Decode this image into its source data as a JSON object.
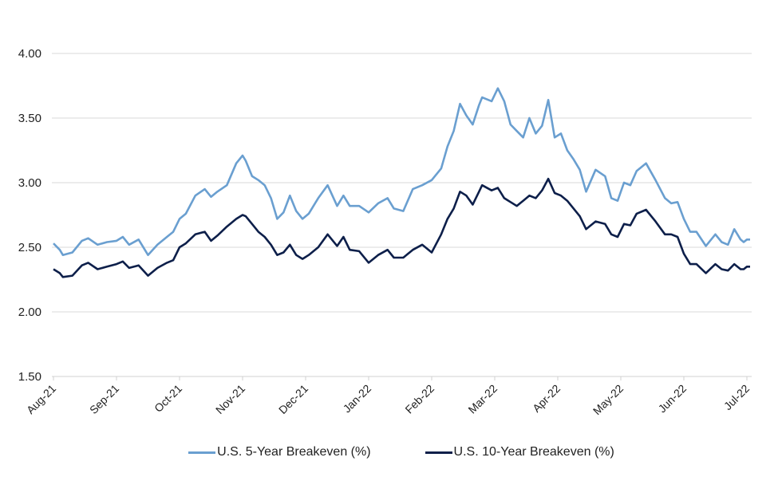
{
  "chart_data": {
    "type": "line",
    "title": "",
    "xlabel": "",
    "ylabel": "",
    "ylim": [
      1.5,
      4.0
    ],
    "yticks": [
      "1.50",
      "2.00",
      "2.50",
      "3.00",
      "3.50",
      "4.00"
    ],
    "ytick_values": [
      1.5,
      2.0,
      2.5,
      3.0,
      3.5,
      4.0
    ],
    "categories": [
      "Aug-21",
      "Sep-21",
      "Oct-21",
      "Nov-21",
      "Dec-21",
      "Jan-22",
      "Feb-22",
      "Mar-22",
      "Apr-22",
      "May-22",
      "Jun-22",
      "Jul-22"
    ],
    "grid": true,
    "legend_position": "bottom",
    "x_domain_months": [
      0,
      11.05
    ],
    "series": [
      {
        "name": "U.S. 5-Year Breakeven (%)",
        "color": "#6a9fd0",
        "x": [
          0,
          0.1,
          0.15,
          0.3,
          0.45,
          0.55,
          0.7,
          0.85,
          1.0,
          1.1,
          1.2,
          1.35,
          1.5,
          1.65,
          1.8,
          1.9,
          2.0,
          2.1,
          2.25,
          2.4,
          2.5,
          2.6,
          2.75,
          2.9,
          3.0,
          3.05,
          3.15,
          3.25,
          3.35,
          3.45,
          3.55,
          3.65,
          3.75,
          3.85,
          3.95,
          4.05,
          4.2,
          4.35,
          4.5,
          4.6,
          4.7,
          4.85,
          5.0,
          5.15,
          5.3,
          5.4,
          5.55,
          5.7,
          5.85,
          6.0,
          6.15,
          6.25,
          6.35,
          6.45,
          6.55,
          6.65,
          6.75,
          6.8,
          6.95,
          7.05,
          7.15,
          7.25,
          7.35,
          7.45,
          7.55,
          7.65,
          7.75,
          7.85,
          7.95,
          8.05,
          8.15,
          8.25,
          8.35,
          8.45,
          8.6,
          8.75,
          8.85,
          8.95,
          9.05,
          9.15,
          9.25,
          9.4,
          9.55,
          9.7,
          9.8,
          9.9,
          10.0,
          10.1,
          10.2,
          10.35,
          10.5,
          10.6,
          10.7,
          10.8,
          10.9,
          10.95,
          11.0,
          11.05
        ],
        "values": [
          2.53,
          2.48,
          2.44,
          2.46,
          2.55,
          2.57,
          2.52,
          2.54,
          2.55,
          2.58,
          2.52,
          2.56,
          2.44,
          2.52,
          2.58,
          2.62,
          2.72,
          2.76,
          2.9,
          2.95,
          2.89,
          2.93,
          2.98,
          3.15,
          3.21,
          3.17,
          3.05,
          3.02,
          2.98,
          2.88,
          2.72,
          2.77,
          2.9,
          2.78,
          2.72,
          2.76,
          2.88,
          2.98,
          2.82,
          2.9,
          2.82,
          2.82,
          2.77,
          2.84,
          2.88,
          2.8,
          2.78,
          2.95,
          2.98,
          3.02,
          3.11,
          3.28,
          3.4,
          3.61,
          3.52,
          3.45,
          3.6,
          3.66,
          3.63,
          3.73,
          3.63,
          3.45,
          3.4,
          3.35,
          3.5,
          3.38,
          3.44,
          3.64,
          3.35,
          3.38,
          3.25,
          3.18,
          3.1,
          2.93,
          3.1,
          3.05,
          2.88,
          2.86,
          3.0,
          2.98,
          3.09,
          3.15,
          3.02,
          2.88,
          2.84,
          2.85,
          2.72,
          2.62,
          2.62,
          2.51,
          2.6,
          2.54,
          2.52,
          2.64,
          2.56,
          2.54,
          2.56,
          2.56
        ]
      },
      {
        "name": "U.S. 10-Year Breakeven (%)",
        "color": "#0d1f4a",
        "x": [
          0,
          0.1,
          0.15,
          0.3,
          0.45,
          0.55,
          0.7,
          0.85,
          1.0,
          1.1,
          1.2,
          1.35,
          1.5,
          1.65,
          1.8,
          1.9,
          2.0,
          2.1,
          2.25,
          2.4,
          2.5,
          2.6,
          2.75,
          2.9,
          3.0,
          3.05,
          3.15,
          3.25,
          3.35,
          3.45,
          3.55,
          3.65,
          3.75,
          3.85,
          3.95,
          4.05,
          4.2,
          4.35,
          4.5,
          4.6,
          4.7,
          4.85,
          5.0,
          5.15,
          5.3,
          5.4,
          5.55,
          5.7,
          5.85,
          6.0,
          6.15,
          6.25,
          6.35,
          6.45,
          6.55,
          6.65,
          6.75,
          6.8,
          6.95,
          7.05,
          7.15,
          7.25,
          7.35,
          7.45,
          7.55,
          7.65,
          7.75,
          7.85,
          7.95,
          8.05,
          8.15,
          8.25,
          8.35,
          8.45,
          8.6,
          8.75,
          8.85,
          8.95,
          9.05,
          9.15,
          9.25,
          9.4,
          9.55,
          9.7,
          9.8,
          9.9,
          10.0,
          10.1,
          10.2,
          10.35,
          10.5,
          10.6,
          10.7,
          10.8,
          10.9,
          10.95,
          11.0,
          11.05
        ],
        "values": [
          2.33,
          2.3,
          2.27,
          2.28,
          2.36,
          2.38,
          2.33,
          2.35,
          2.37,
          2.39,
          2.34,
          2.36,
          2.28,
          2.34,
          2.38,
          2.4,
          2.5,
          2.53,
          2.6,
          2.62,
          2.55,
          2.59,
          2.66,
          2.72,
          2.75,
          2.74,
          2.68,
          2.62,
          2.58,
          2.52,
          2.44,
          2.46,
          2.52,
          2.44,
          2.41,
          2.44,
          2.5,
          2.6,
          2.51,
          2.58,
          2.48,
          2.47,
          2.38,
          2.44,
          2.48,
          2.42,
          2.42,
          2.48,
          2.52,
          2.46,
          2.6,
          2.72,
          2.8,
          2.93,
          2.9,
          2.83,
          2.93,
          2.98,
          2.94,
          2.96,
          2.88,
          2.85,
          2.82,
          2.86,
          2.9,
          2.88,
          2.94,
          3.03,
          2.92,
          2.9,
          2.86,
          2.8,
          2.74,
          2.64,
          2.7,
          2.68,
          2.6,
          2.58,
          2.68,
          2.67,
          2.76,
          2.79,
          2.7,
          2.6,
          2.6,
          2.58,
          2.45,
          2.37,
          2.37,
          2.3,
          2.37,
          2.33,
          2.32,
          2.37,
          2.33,
          2.33,
          2.35,
          2.35
        ]
      }
    ]
  }
}
